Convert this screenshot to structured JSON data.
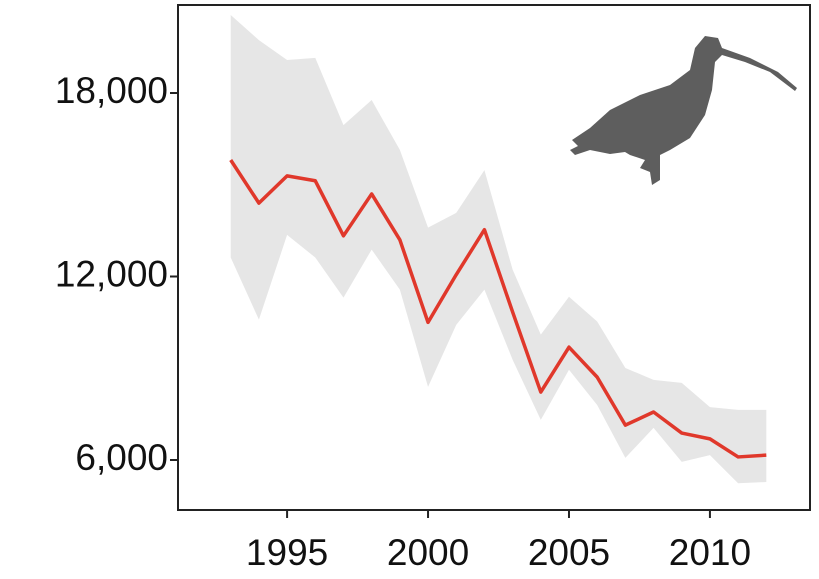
{
  "chart_data": {
    "type": "line",
    "x": [
      1993,
      1994,
      1995,
      1996,
      1997,
      1998,
      1999,
      2000,
      2001,
      2002,
      2003,
      2004,
      2005,
      2006,
      2007,
      2008,
      2009,
      2010,
      2011,
      2012
    ],
    "values": [
      15810,
      14400,
      15290,
      15130,
      13330,
      14700,
      13200,
      10500,
      12060,
      13530,
      10840,
      8220,
      9690,
      8710,
      7140,
      7570,
      6880,
      6690,
      6100,
      6160
    ],
    "band_upper": [
      20550,
      19730,
      19080,
      19150,
      16950,
      17770,
      16140,
      13600,
      14080,
      15480,
      12230,
      10100,
      11340,
      10530,
      9010,
      8620,
      8520,
      7730,
      7640,
      7640
    ],
    "band_lower": [
      12620,
      10590,
      13360,
      12620,
      11310,
      12880,
      11570,
      8390,
      10420,
      11570,
      9280,
      7310,
      8950,
      7800,
      6070,
      7050,
      5940,
      6160,
      5240,
      5280
    ],
    "color": "#e0382b",
    "band_color": "#e6e6e6",
    "xlim": [
      1991.13,
      2013.55
    ],
    "ylim": [
      4365,
      20878
    ],
    "xticks": [
      1995,
      2000,
      2005,
      2010
    ],
    "yticks": [
      {
        "value": 6000,
        "label": "6,000"
      },
      {
        "value": 12000,
        "label": "12,000"
      },
      {
        "value": 18000,
        "label": "18,000"
      }
    ]
  }
}
